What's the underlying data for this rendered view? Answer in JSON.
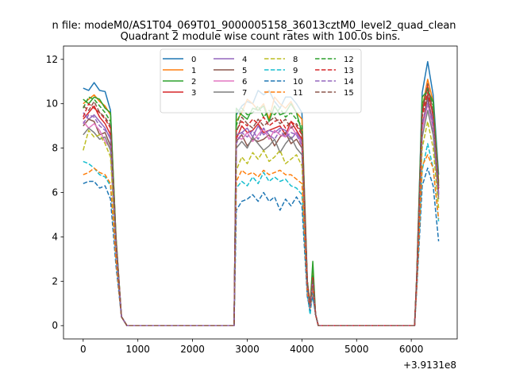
{
  "chart_data": {
    "type": "line",
    "suptitle": "n file: modeM0/AS1T04_069T01_9000005158_36013cztM0_level2_quad_clean",
    "title": "Quadrant 2 module wise count rates with 100.0s bins.",
    "xlabel": "",
    "ylabel": "",
    "x_offset_label": "+3.9131e8",
    "xlim": [
      -360,
      6840
    ],
    "ylim": [
      -0.6,
      12.6
    ],
    "xticks": [
      0,
      1000,
      2000,
      3000,
      4000,
      5000,
      6000
    ],
    "yticks": [
      0,
      2,
      4,
      6,
      8,
      10,
      12
    ],
    "grid": false,
    "legend": {
      "placement": "top-center",
      "columns": 4
    },
    "x": [
      0,
      100,
      200,
      300,
      400,
      500,
      600,
      700,
      800,
      900,
      1000,
      1100,
      1200,
      1300,
      1400,
      1500,
      1600,
      1700,
      1800,
      1900,
      2000,
      2100,
      2200,
      2300,
      2400,
      2500,
      2600,
      2700,
      2760,
      2800,
      2900,
      3000,
      3100,
      3200,
      3300,
      3400,
      3500,
      3600,
      3700,
      3800,
      3900,
      4000,
      4100,
      4150,
      4200,
      4250,
      4300,
      4350,
      4400,
      4500,
      4600,
      4700,
      4800,
      4900,
      5000,
      5100,
      5200,
      5300,
      5400,
      5500,
      5600,
      5700,
      5800,
      5900,
      6000,
      6060,
      6100,
      6200,
      6300,
      6400,
      6500
    ],
    "series": [
      {
        "name": "0",
        "style": "solid",
        "color": "#1f77b4",
        "values": [
          10.7,
          10.6,
          10.95,
          10.6,
          10.55,
          9.7,
          4.0,
          0.4,
          0,
          0,
          0,
          0,
          0,
          0,
          0,
          0,
          0,
          0,
          0,
          0,
          0,
          0,
          0,
          0,
          0,
          0,
          0,
          0,
          0,
          9.5,
          9.9,
          10.1,
          10.0,
          10.6,
          10.4,
          10.6,
          10.1,
          9.8,
          10.3,
          10.3,
          10.0,
          9.6,
          2.0,
          0.9,
          1.3,
          0.5,
          0,
          0,
          0,
          0,
          0,
          0,
          0,
          0,
          0,
          0,
          0,
          0,
          0,
          0,
          0,
          0,
          0,
          0,
          0,
          0,
          2.2,
          10.5,
          11.9,
          10.4,
          6.8
        ]
      },
      {
        "name": "1",
        "style": "solid",
        "color": "#ff7f0e",
        "values": [
          10.0,
          10.2,
          10.4,
          10.1,
          9.9,
          9.5,
          4.0,
          0.4,
          0,
          0,
          0,
          0,
          0,
          0,
          0,
          0,
          0,
          0,
          0,
          0,
          0,
          0,
          0,
          0,
          0,
          0,
          0,
          0,
          0,
          9.2,
          9.6,
          10.2,
          10.0,
          9.7,
          10.0,
          9.3,
          10.3,
          10.0,
          9.8,
          10.1,
          9.6,
          9.3,
          2.0,
          0.9,
          2.4,
          0.5,
          0,
          0,
          0,
          0,
          0,
          0,
          0,
          0,
          0,
          0,
          0,
          0,
          0,
          0,
          0,
          0,
          0,
          0,
          0,
          0,
          2.2,
          9.8,
          11.1,
          10.1,
          6.5
        ]
      },
      {
        "name": "2",
        "style": "solid",
        "color": "#2ca02c",
        "values": [
          10.2,
          10.0,
          10.3,
          10.2,
          9.8,
          9.6,
          4.0,
          0.4,
          0,
          0,
          0,
          0,
          0,
          0,
          0,
          0,
          0,
          0,
          0,
          0,
          0,
          0,
          0,
          0,
          0,
          0,
          0,
          0,
          0,
          9.8,
          9.5,
          9.3,
          9.8,
          9.7,
          9.9,
          9.2,
          9.9,
          9.5,
          9.6,
          10.0,
          9.6,
          8.7,
          2.0,
          0.9,
          2.9,
          0.5,
          0,
          0,
          0,
          0,
          0,
          0,
          0,
          0,
          0,
          0,
          0,
          0,
          0,
          0,
          0,
          0,
          0,
          0,
          0,
          0,
          2.2,
          10.3,
          10.6,
          10.1,
          6.3
        ]
      },
      {
        "name": "3",
        "style": "solid",
        "color": "#d62728",
        "values": [
          9.3,
          9.6,
          9.9,
          9.4,
          9.1,
          8.6,
          3.8,
          0.4,
          0,
          0,
          0,
          0,
          0,
          0,
          0,
          0,
          0,
          0,
          0,
          0,
          0,
          0,
          0,
          0,
          0,
          0,
          0,
          0,
          0,
          8.4,
          9.0,
          8.7,
          8.8,
          9.1,
          8.7,
          8.8,
          8.9,
          9.0,
          8.6,
          9.2,
          8.8,
          8.4,
          1.9,
          0.9,
          2.2,
          0.5,
          0,
          0,
          0,
          0,
          0,
          0,
          0,
          0,
          0,
          0,
          0,
          0,
          0,
          0,
          0,
          0,
          0,
          0,
          0,
          0,
          2.1,
          9.6,
          10.8,
          9.4,
          6.2
        ]
      },
      {
        "name": "4",
        "style": "solid",
        "color": "#9467bd",
        "values": [
          9.6,
          9.3,
          9.5,
          9.2,
          8.9,
          8.4,
          3.7,
          0.4,
          0,
          0,
          0,
          0,
          0,
          0,
          0,
          0,
          0,
          0,
          0,
          0,
          0,
          0,
          0,
          0,
          0,
          0,
          0,
          0,
          0,
          8.6,
          8.7,
          8.9,
          8.5,
          9.0,
          8.6,
          8.8,
          8.7,
          8.9,
          8.8,
          8.4,
          8.7,
          8.3,
          1.9,
          0.9,
          2.1,
          0.5,
          0,
          0,
          0,
          0,
          0,
          0,
          0,
          0,
          0,
          0,
          0,
          0,
          0,
          0,
          0,
          0,
          0,
          0,
          0,
          0,
          2.1,
          9.0,
          10.2,
          9.2,
          6.0
        ]
      },
      {
        "name": "5",
        "style": "solid",
        "color": "#8c564b",
        "values": [
          9.0,
          9.3,
          9.2,
          8.6,
          8.7,
          8.1,
          3.6,
          0.4,
          0,
          0,
          0,
          0,
          0,
          0,
          0,
          0,
          0,
          0,
          0,
          0,
          0,
          0,
          0,
          0,
          0,
          0,
          0,
          0,
          0,
          8.3,
          8.6,
          8.1,
          8.4,
          8.3,
          8.4,
          8.6,
          8.1,
          8.5,
          8.7,
          8.2,
          8.4,
          8.0,
          1.8,
          0.9,
          2.0,
          0.5,
          0,
          0,
          0,
          0,
          0,
          0,
          0,
          0,
          0,
          0,
          0,
          0,
          0,
          0,
          0,
          0,
          0,
          0,
          0,
          0,
          2.0,
          8.9,
          10.4,
          8.8,
          5.9
        ]
      },
      {
        "name": "6",
        "style": "solid",
        "color": "#e377c2",
        "values": [
          9.2,
          8.9,
          9.1,
          8.8,
          8.3,
          8.0,
          3.5,
          0.4,
          0,
          0,
          0,
          0,
          0,
          0,
          0,
          0,
          0,
          0,
          0,
          0,
          0,
          0,
          0,
          0,
          0,
          0,
          0,
          0,
          0,
          8.5,
          8.4,
          8.7,
          8.3,
          8.6,
          8.9,
          8.4,
          8.8,
          8.6,
          8.5,
          9.0,
          8.6,
          8.2,
          1.8,
          0.9,
          2.0,
          0.5,
          0,
          0,
          0,
          0,
          0,
          0,
          0,
          0,
          0,
          0,
          0,
          0,
          0,
          0,
          0,
          0,
          0,
          0,
          0,
          0,
          2.0,
          8.8,
          10.0,
          8.9,
          5.8
        ]
      },
      {
        "name": "7",
        "style": "solid",
        "color": "#7f7f7f",
        "values": [
          8.6,
          8.9,
          8.7,
          8.4,
          8.5,
          7.9,
          3.5,
          0.4,
          0,
          0,
          0,
          0,
          0,
          0,
          0,
          0,
          0,
          0,
          0,
          0,
          0,
          0,
          0,
          0,
          0,
          0,
          0,
          0,
          0,
          8.0,
          8.3,
          8.0,
          8.5,
          8.2,
          7.9,
          8.1,
          8.4,
          7.8,
          8.2,
          8.5,
          8.0,
          7.7,
          1.8,
          0.9,
          2.0,
          0.5,
          0,
          0,
          0,
          0,
          0,
          0,
          0,
          0,
          0,
          0,
          0,
          0,
          0,
          0,
          0,
          0,
          0,
          0,
          0,
          0,
          2.0,
          8.5,
          9.7,
          8.6,
          5.7
        ]
      },
      {
        "name": "8",
        "style": "dashed",
        "color": "#bcbd22",
        "values": [
          7.9,
          8.8,
          8.5,
          8.6,
          8.2,
          7.6,
          3.4,
          0.4,
          0,
          0,
          0,
          0,
          0,
          0,
          0,
          0,
          0,
          0,
          0,
          0,
          0,
          0,
          0,
          0,
          0,
          0,
          0,
          0,
          0,
          7.0,
          7.6,
          7.3,
          7.8,
          7.5,
          7.9,
          7.4,
          7.6,
          7.9,
          7.3,
          7.5,
          7.7,
          7.2,
          1.7,
          0.8,
          1.9,
          0.5,
          0,
          0,
          0,
          0,
          0,
          0,
          0,
          0,
          0,
          0,
          0,
          0,
          0,
          0,
          0,
          0,
          0,
          0,
          0,
          0,
          1.9,
          8.0,
          9.2,
          8.0,
          5.3
        ]
      },
      {
        "name": "9",
        "style": "dashed",
        "color": "#17becf",
        "values": [
          7.4,
          7.3,
          7.1,
          6.8,
          6.7,
          6.3,
          3.0,
          0.4,
          0,
          0,
          0,
          0,
          0,
          0,
          0,
          0,
          0,
          0,
          0,
          0,
          0,
          0,
          0,
          0,
          0,
          0,
          0,
          0,
          0,
          6.2,
          6.5,
          6.3,
          6.7,
          6.4,
          6.9,
          6.5,
          6.7,
          6.5,
          6.6,
          6.3,
          6.2,
          5.9,
          1.4,
          0.5,
          1.6,
          0.5,
          0,
          0,
          0,
          0,
          0,
          0,
          0,
          0,
          0,
          0,
          0,
          0,
          0,
          0,
          0,
          0,
          0,
          0,
          0,
          0,
          1.7,
          7.0,
          8.2,
          7.1,
          4.7
        ]
      },
      {
        "name": "10",
        "style": "dashed",
        "color": "#1f77b4",
        "values": [
          6.4,
          6.5,
          6.5,
          6.2,
          6.3,
          5.7,
          2.7,
          0.4,
          0,
          0,
          0,
          0,
          0,
          0,
          0,
          0,
          0,
          0,
          0,
          0,
          0,
          0,
          0,
          0,
          0,
          0,
          0,
          0,
          0,
          5.2,
          5.6,
          5.7,
          5.9,
          5.6,
          6.0,
          5.6,
          5.8,
          5.2,
          5.7,
          5.4,
          5.8,
          5.4,
          1.3,
          0.7,
          1.5,
          0.5,
          0,
          0,
          0,
          0,
          0,
          0,
          0,
          0,
          0,
          0,
          0,
          0,
          0,
          0,
          0,
          0,
          0,
          0,
          0,
          0,
          1.6,
          6.3,
          7.1,
          6.3,
          3.8
        ]
      },
      {
        "name": "11",
        "style": "dashed",
        "color": "#ff7f0e",
        "values": [
          6.8,
          6.9,
          7.1,
          6.9,
          6.8,
          6.4,
          3.0,
          0.4,
          0,
          0,
          0,
          0,
          0,
          0,
          0,
          0,
          0,
          0,
          0,
          0,
          0,
          0,
          0,
          0,
          0,
          0,
          0,
          0,
          0,
          6.5,
          7.0,
          6.8,
          6.9,
          6.7,
          7.0,
          6.8,
          6.9,
          7.0,
          6.8,
          6.8,
          6.6,
          6.4,
          1.5,
          0.8,
          1.7,
          0.5,
          0,
          0,
          0,
          0,
          0,
          0,
          0,
          0,
          0,
          0,
          0,
          0,
          0,
          0,
          0,
          0,
          0,
          0,
          0,
          0,
          1.7,
          7.2,
          7.7,
          7.1,
          4.8
        ]
      },
      {
        "name": "12",
        "style": "dashed",
        "color": "#2ca02c",
        "values": [
          9.8,
          10.3,
          10.2,
          9.9,
          9.6,
          9.2,
          3.9,
          0.4,
          0,
          0,
          0,
          0,
          0,
          0,
          0,
          0,
          0,
          0,
          0,
          0,
          0,
          0,
          0,
          0,
          0,
          0,
          0,
          0,
          0,
          9.0,
          9.8,
          9.5,
          9.6,
          9.9,
          9.4,
          9.7,
          9.5,
          9.8,
          9.4,
          9.6,
          9.3,
          9.0,
          2.0,
          0.9,
          2.3,
          0.5,
          0,
          0,
          0,
          0,
          0,
          0,
          0,
          0,
          0,
          0,
          0,
          0,
          0,
          0,
          0,
          0,
          0,
          0,
          0,
          0,
          2.2,
          9.9,
          10.7,
          9.9,
          6.4
        ]
      },
      {
        "name": "13",
        "style": "dashed",
        "color": "#d62728",
        "values": [
          9.4,
          10.0,
          9.8,
          9.6,
          9.3,
          8.9,
          3.8,
          0.4,
          0,
          0,
          0,
          0,
          0,
          0,
          0,
          0,
          0,
          0,
          0,
          0,
          0,
          0,
          0,
          0,
          0,
          0,
          0,
          0,
          0,
          8.8,
          9.2,
          9.0,
          9.3,
          9.1,
          9.4,
          9.0,
          9.2,
          9.3,
          8.9,
          9.2,
          9.0,
          8.6,
          1.9,
          0.9,
          2.2,
          0.5,
          0,
          0,
          0,
          0,
          0,
          0,
          0,
          0,
          0,
          0,
          0,
          0,
          0,
          0,
          0,
          0,
          0,
          0,
          0,
          0,
          2.1,
          9.4,
          10.5,
          9.5,
          6.1
        ]
      },
      {
        "name": "14",
        "style": "dashed",
        "color": "#9467bd",
        "values": [
          9.1,
          9.5,
          9.4,
          9.0,
          8.8,
          8.5,
          3.7,
          0.4,
          0,
          0,
          0,
          0,
          0,
          0,
          0,
          0,
          0,
          0,
          0,
          0,
          0,
          0,
          0,
          0,
          0,
          0,
          0,
          0,
          0,
          8.2,
          8.7,
          8.5,
          8.8,
          8.4,
          8.9,
          8.6,
          8.4,
          8.8,
          8.5,
          8.7,
          8.6,
          8.1,
          1.8,
          0.8,
          2.0,
          0.5,
          0,
          0,
          0,
          0,
          0,
          0,
          0,
          0,
          0,
          0,
          0,
          0,
          0,
          0,
          0,
          0,
          0,
          0,
          0,
          0,
          2.0,
          9.1,
          10.0,
          9.0,
          5.9
        ]
      },
      {
        "name": "15",
        "style": "dashed",
        "color": "#8c564b",
        "values": [
          9.9,
          9.7,
          10.1,
          9.6,
          9.4,
          9.0,
          3.8,
          0.4,
          0,
          0,
          0,
          0,
          0,
          0,
          0,
          0,
          0,
          0,
          0,
          0,
          0,
          0,
          0,
          0,
          0,
          0,
          0,
          0,
          0,
          8.7,
          9.4,
          9.1,
          8.9,
          9.3,
          9.0,
          9.2,
          9.4,
          9.1,
          9.3,
          8.9,
          9.1,
          8.7,
          1.9,
          0.9,
          2.1,
          0.5,
          0,
          0,
          0,
          0,
          0,
          0,
          0,
          0,
          0,
          0,
          0,
          0,
          0,
          0,
          0,
          0,
          0,
          0,
          0,
          0,
          2.1,
          9.7,
          10.9,
          9.6,
          6.2
        ]
      }
    ]
  }
}
